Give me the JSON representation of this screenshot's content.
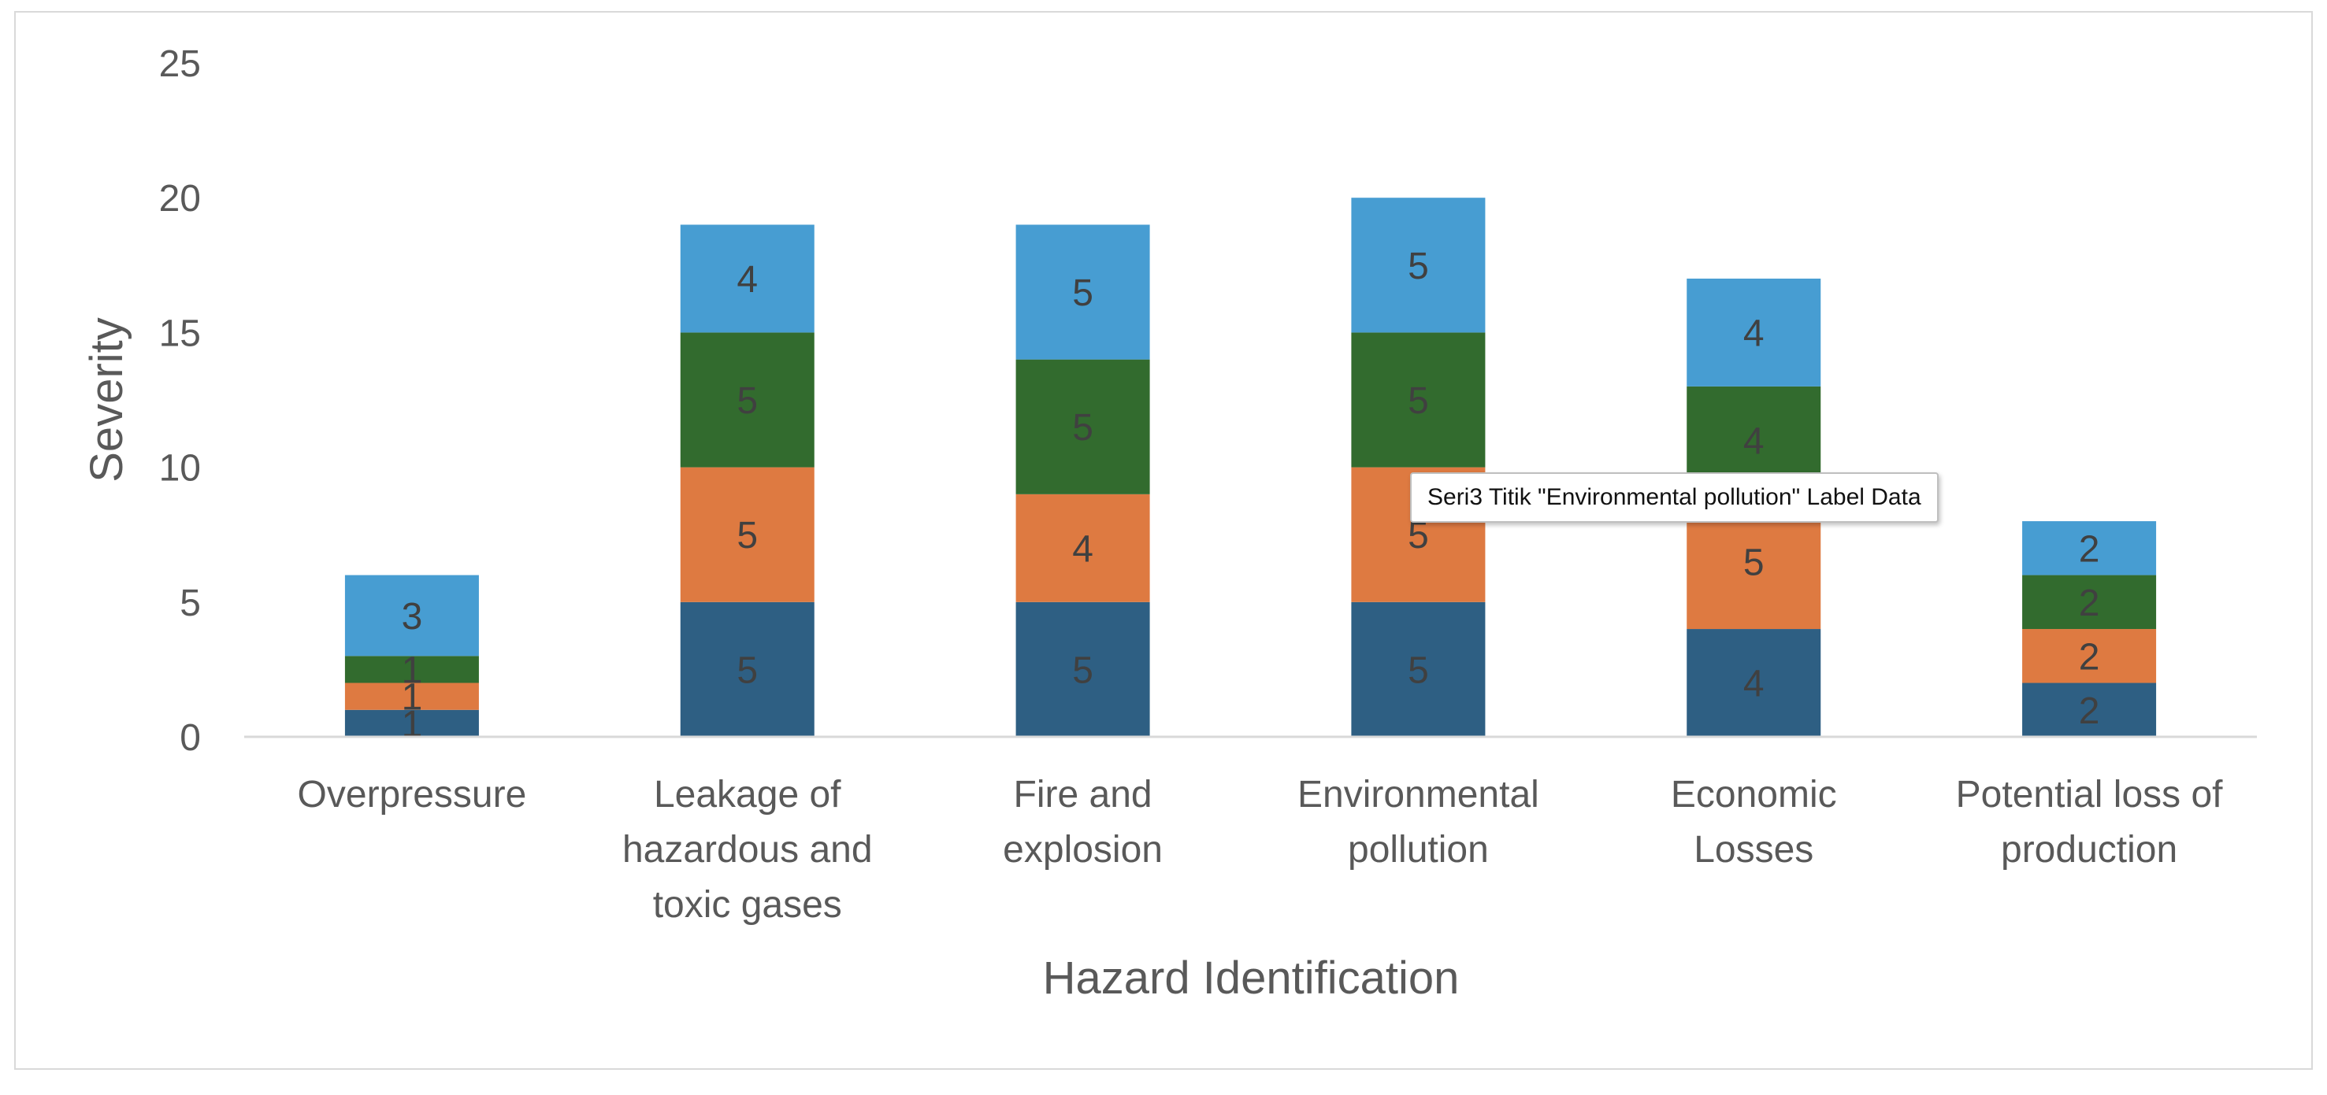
{
  "chart_data": {
    "type": "bar",
    "stacked": true,
    "xlabel": "Hazard Identification",
    "ylabel": "Severity",
    "ylim": [
      0,
      25
    ],
    "yticks": [
      0,
      5,
      10,
      15,
      20,
      25
    ],
    "grid": false,
    "legend": "none",
    "categories": [
      [
        "Overpressure"
      ],
      [
        "Leakage of",
        "hazardous and",
        "toxic gases"
      ],
      [
        "Fire and",
        "explosion"
      ],
      [
        "Environmental",
        "pollution"
      ],
      [
        "Economic",
        "Losses"
      ],
      [
        "Potential loss of",
        "production"
      ]
    ],
    "series": [
      {
        "values": [
          1,
          5,
          5,
          5,
          4,
          2
        ],
        "color": "#2e5f83"
      },
      {
        "values": [
          1,
          5,
          4,
          5,
          5,
          2
        ],
        "color": "#de7a41"
      },
      {
        "values": [
          1,
          5,
          5,
          5,
          4,
          2
        ],
        "color": "#326b2e"
      },
      {
        "values": [
          3,
          4,
          5,
          5,
          4,
          2
        ],
        "color": "#479dd2"
      }
    ]
  },
  "tooltip": {
    "text": "Seri3 Titik \"Environmental pollution\" Label Data"
  }
}
